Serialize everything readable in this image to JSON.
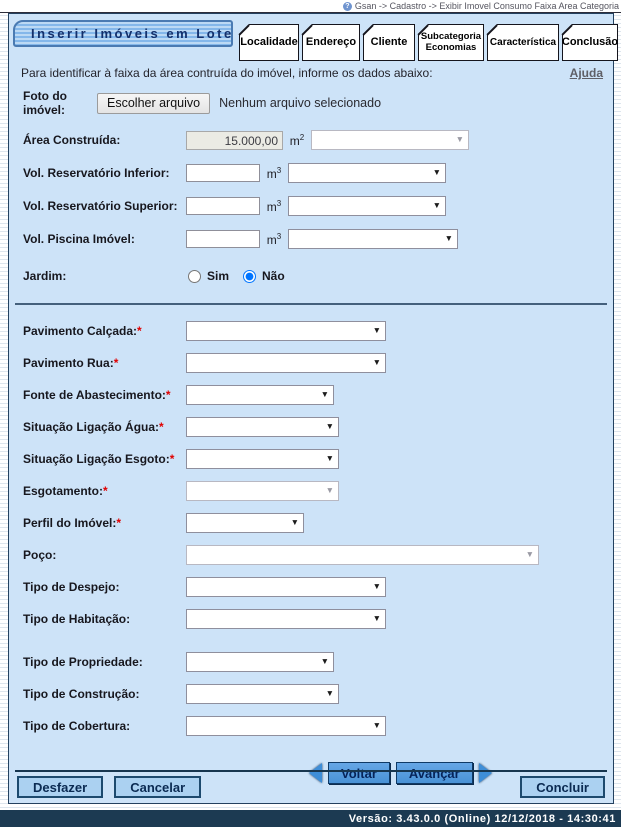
{
  "colors": {
    "content_bg": "#cde3f8",
    "title_bar_blue": "#84b7ea",
    "nav_button_blue": "#4992d6",
    "action_button_blue": "#abd1f1",
    "footer_bg": "#1c3a52",
    "required_red": "#e00000"
  },
  "breadcrumb": {
    "text": "Gsan -> Cadastro -> Exibir Imovel Consumo Faixa Area Categoria",
    "icon": "?"
  },
  "header": {
    "title": "Inserir Imóveis em Lote"
  },
  "tabs": [
    {
      "label": "Localidade"
    },
    {
      "label": "Endereço"
    },
    {
      "label": "Cliente"
    },
    {
      "label": "Subcategoria Economias"
    },
    {
      "label": "Característica"
    },
    {
      "label": "Conclusão"
    }
  ],
  "intro": {
    "text": "Para identificar à faixa da área contruída do imóvel, informe os dados abaixo:",
    "help": "Ajuda"
  },
  "photo": {
    "label": "Foto do imóvel:",
    "button": "Escolher arquivo",
    "status": "Nenhum arquivo selecionado"
  },
  "area": {
    "label": "Área Construída:",
    "value": "15.000,00",
    "unit": "m",
    "exp": "2"
  },
  "volumes": [
    {
      "label": "Vol. Reservatório Inferior:",
      "value": "",
      "unit": "m",
      "exp": "3"
    },
    {
      "label": "Vol. Reservatório Superior:",
      "value": "",
      "unit": "m",
      "exp": "3"
    },
    {
      "label": "Vol. Piscina Imóvel:",
      "value": "",
      "unit": "m",
      "exp": "3"
    }
  ],
  "jardim": {
    "label": "Jardim:",
    "options": [
      "Sim",
      "Não"
    ],
    "selected": "Não"
  },
  "selects": [
    {
      "label": "Pavimento Calçada:",
      "required": "*"
    },
    {
      "label": "Pavimento Rua:",
      "required": "*"
    },
    {
      "label": "Fonte de Abastecimento:",
      "required": "*"
    },
    {
      "label": "Situação Ligação Água:",
      "required": "*"
    },
    {
      "label": "Situação Ligação Esgoto:",
      "required": "*"
    },
    {
      "label": "Esgotamento:",
      "required": "*"
    },
    {
      "label": "Perfil do Imóvel:",
      "required": "*"
    },
    {
      "label": "Poço:",
      "required": ""
    },
    {
      "label": "Tipo de Despejo:",
      "required": ""
    },
    {
      "label": "Tipo de Habitação:",
      "required": ""
    },
    {
      "label": "Tipo de Propriedade:",
      "required": ""
    },
    {
      "label": "Tipo de Construção:",
      "required": ""
    },
    {
      "label": "Tipo de Cobertura:",
      "required": ""
    }
  ],
  "nav": {
    "back": "Voltar",
    "forward": "Avançar"
  },
  "actions": {
    "undo": "Desfazer",
    "cancel": "Cancelar",
    "finish": "Concluir"
  },
  "footer": {
    "text": "Versão: 3.43.0.0 (Online) 12/12/2018 - 14:30:41"
  }
}
